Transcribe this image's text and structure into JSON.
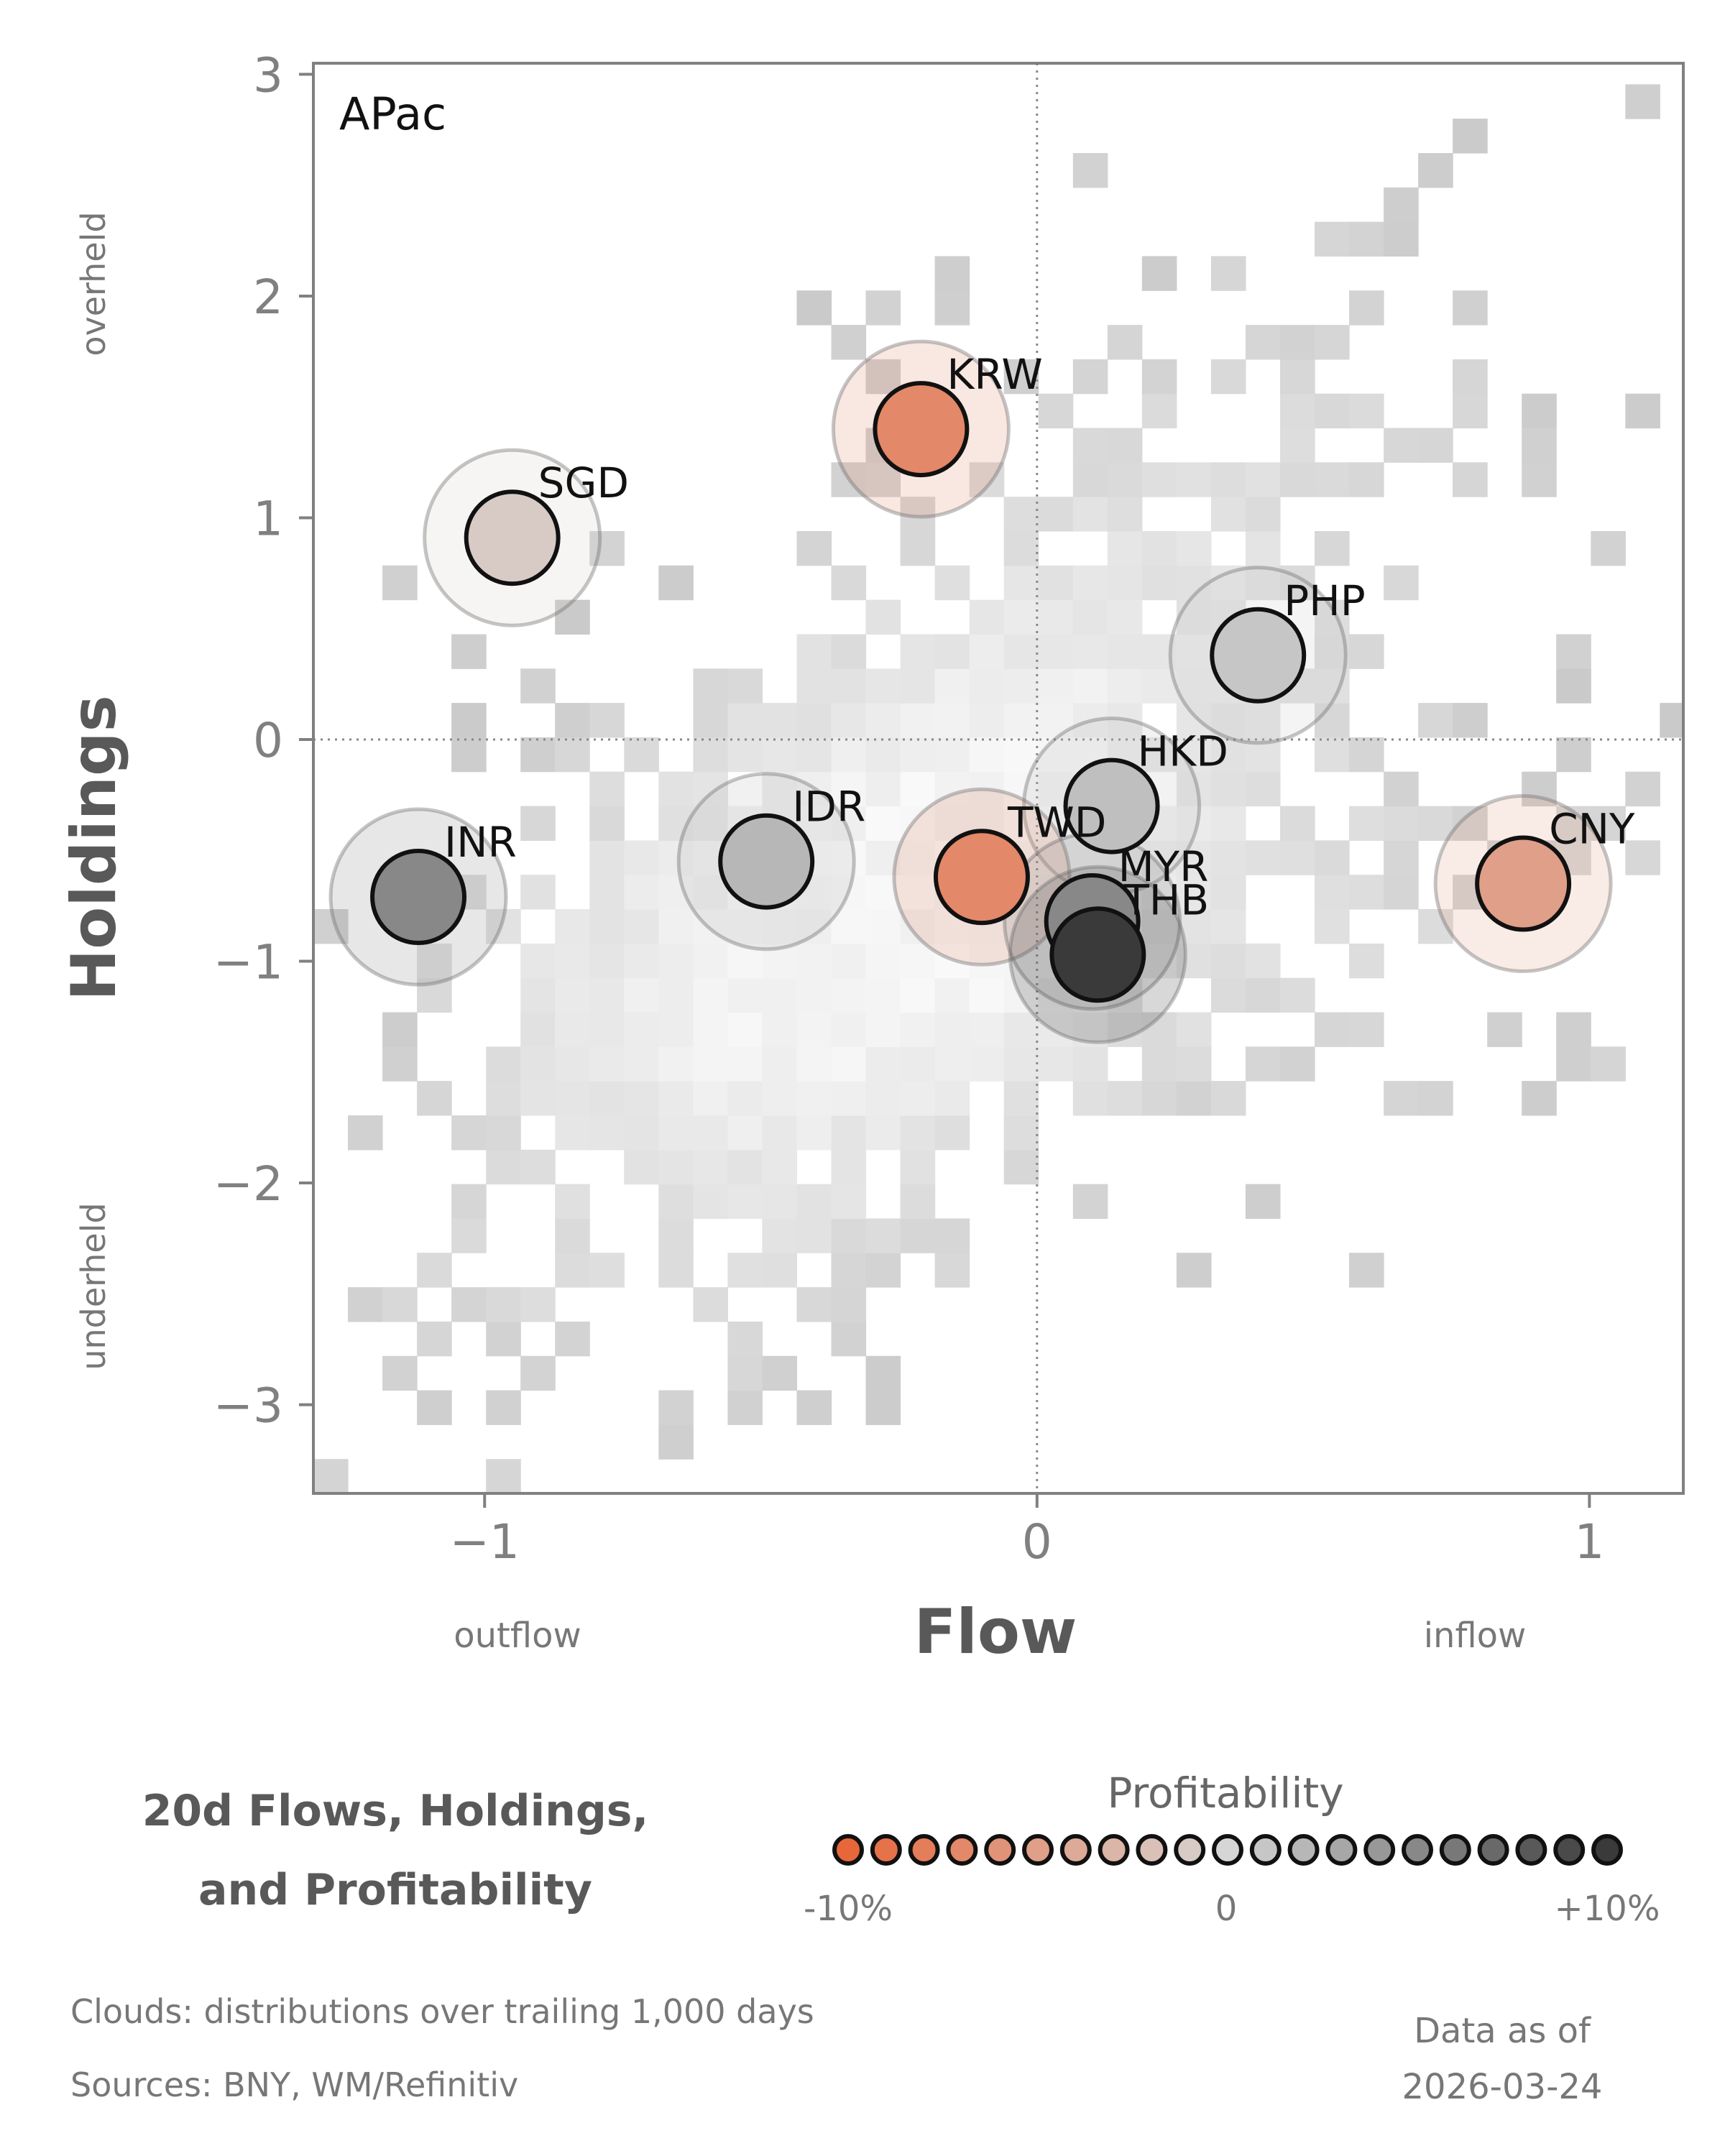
{
  "chart_data": {
    "type": "scatter",
    "panel_label": "APac",
    "xlabel": "Flow",
    "ylabel": "Holdings",
    "x_annotations": {
      "low": "outflow",
      "high": "inflow"
    },
    "y_annotations": {
      "high": "overheld",
      "low": "underheld"
    },
    "xlim": [
      -1.31,
      1.17
    ],
    "ylim": [
      -3.4,
      3.05
    ],
    "xticks": [
      {
        "value": -1,
        "label": "−1"
      },
      {
        "value": 0,
        "label": "0"
      },
      {
        "value": 1,
        "label": "1"
      }
    ],
    "yticks": [
      {
        "value": 3,
        "label": "3"
      },
      {
        "value": 2,
        "label": "2"
      },
      {
        "value": 1,
        "label": "1"
      },
      {
        "value": 0,
        "label": "0"
      },
      {
        "value": -1,
        "label": "−1"
      },
      {
        "value": -2,
        "label": "−2"
      },
      {
        "value": -3,
        "label": "−3"
      }
    ],
    "reference_lines": {
      "x": 0,
      "y": 0,
      "style": "dotted"
    },
    "points": [
      {
        "label": "KRW",
        "x": -0.21,
        "y": 1.4,
        "profitability": -7
      },
      {
        "label": "SGD",
        "x": -0.95,
        "y": 0.91,
        "profitability": -1
      },
      {
        "label": "PHP",
        "x": 0.4,
        "y": 0.38,
        "profitability": 1
      },
      {
        "label": "HKD",
        "x": 0.135,
        "y": -0.3,
        "profitability": 1.5
      },
      {
        "label": "INR",
        "x": -1.12,
        "y": -0.71,
        "profitability": 5
      },
      {
        "label": "IDR",
        "x": -0.49,
        "y": -0.55,
        "profitability": 2
      },
      {
        "label": "TWD",
        "x": -0.1,
        "y": -0.62,
        "profitability": -7
      },
      {
        "label": "MYR",
        "x": 0.1,
        "y": -0.82,
        "profitability": 5
      },
      {
        "label": "THB",
        "x": 0.11,
        "y": -0.97,
        "profitability": 10
      },
      {
        "label": "CNY",
        "x": 0.88,
        "y": -0.65,
        "profitability": -5
      }
    ],
    "cloud_description": "Clouds:  distributions over trailing 1,000 days",
    "colorbar": {
      "title": "Profitability",
      "range": [
        -10,
        10
      ],
      "tick_labels": [
        "-10%",
        "0",
        "+10%"
      ],
      "low_color": "#e8673a",
      "mid_color": "#d6d6d6",
      "high_color": "#3a3a3a"
    }
  },
  "title_lines": [
    "20d Flows, Holdings,",
    "and Profitability"
  ],
  "footer": {
    "clouds": "Clouds:  distributions over trailing 1,000 days",
    "sources": "Sources:  BNY, WM/Refinitiv"
  },
  "as_of": {
    "label": "Data as of",
    "date": "2026-03-24"
  }
}
